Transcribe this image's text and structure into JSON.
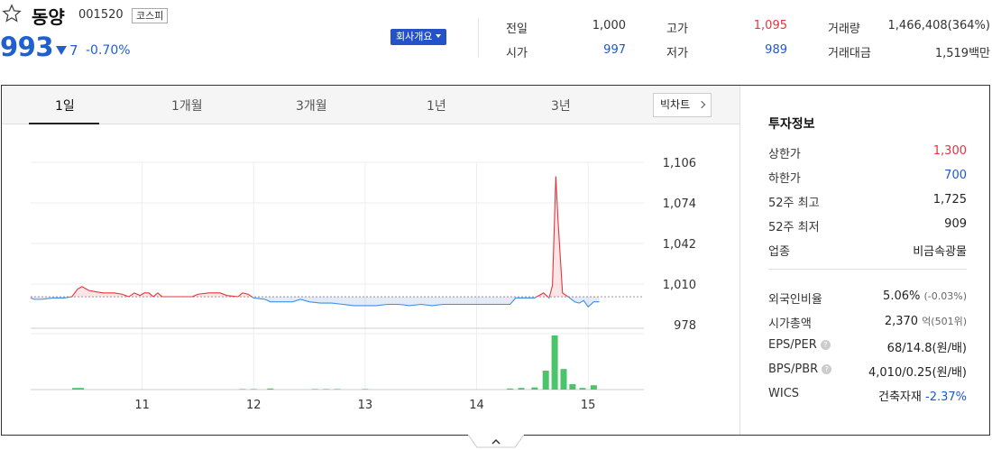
{
  "stock": {
    "name": "동양",
    "code": "001520",
    "market": "코스피",
    "price": "993",
    "change": "7",
    "change_pct": "-0.70%",
    "overview_button": "회사개요"
  },
  "quote": {
    "prev_close_label": "전일",
    "prev_close": "1,000",
    "open_label": "시가",
    "open": "997",
    "high_label": "고가",
    "high": "1,095",
    "low_label": "저가",
    "low": "989",
    "volume_label": "거래량",
    "volume": "1,466,408(364%)",
    "amount_label": "거래대금",
    "amount": "1,519백만"
  },
  "tabs": [
    "1일",
    "1개월",
    "3개월",
    "1년",
    "3년"
  ],
  "big_chart_label": "빅차트",
  "investment": {
    "title": "투자정보",
    "rows_top": [
      {
        "label": "상한가",
        "value": "1,300",
        "color": "red"
      },
      {
        "label": "하한가",
        "value": "700",
        "color": "blue"
      },
      {
        "label": "52주 최고",
        "value": "1,725",
        "color": ""
      },
      {
        "label": "52주 최저",
        "value": "909",
        "color": ""
      },
      {
        "label": "업종",
        "value": "비금속광물",
        "color": ""
      }
    ],
    "foreign_label": "외국인비율",
    "foreign_value": "5.06%",
    "foreign_sub": "(-0.03%)",
    "mcap_label": "시가총액",
    "mcap_value": "2,370",
    "mcap_unit": "억",
    "mcap_sub": "(501위)",
    "eps_label": "EPS/PER",
    "eps_value": "68/14.8",
    "eps_unit": "(원/배)",
    "bps_label": "BPS/PBR",
    "bps_value": "4,010/0.25",
    "bps_unit": "(원/배)",
    "wics_label": "WICS",
    "wics_value": "건축자재",
    "wics_pct": "-2.37%",
    "help_icon": "?"
  },
  "colors": {
    "up": "#e4353c",
    "down": "#2157c6",
    "volume": "#4ac56b",
    "accent": "#2552c9"
  },
  "chart_data": {
    "type": "line",
    "title": "",
    "xlabel": "",
    "ylabel": "",
    "x_ticks": [
      "11",
      "12",
      "13",
      "14",
      "15"
    ],
    "y_ticks": [
      "1,106",
      "1,074",
      "1,042",
      "1,010",
      "978"
    ],
    "ylim": [
      978,
      1106
    ],
    "baseline": 1000,
    "x_start_hour": 10.0,
    "x_end_hour": 15.5,
    "price_series": [
      {
        "h": 10.0,
        "v": 999
      },
      {
        "h": 10.03,
        "v": 998
      },
      {
        "h": 10.1,
        "v": 998
      },
      {
        "h": 10.2,
        "v": 999
      },
      {
        "h": 10.3,
        "v": 999
      },
      {
        "h": 10.37,
        "v": 1000
      },
      {
        "h": 10.42,
        "v": 1006
      },
      {
        "h": 10.46,
        "v": 1008
      },
      {
        "h": 10.52,
        "v": 1005
      },
      {
        "h": 10.58,
        "v": 1004
      },
      {
        "h": 10.65,
        "v": 1003
      },
      {
        "h": 10.75,
        "v": 1003
      },
      {
        "h": 10.82,
        "v": 1002
      },
      {
        "h": 10.88,
        "v": 1000
      },
      {
        "h": 10.93,
        "v": 1003
      },
      {
        "h": 10.98,
        "v": 1001
      },
      {
        "h": 11.02,
        "v": 1003
      },
      {
        "h": 11.06,
        "v": 1003
      },
      {
        "h": 11.1,
        "v": 1000
      },
      {
        "h": 11.14,
        "v": 1003
      },
      {
        "h": 11.18,
        "v": 1000
      },
      {
        "h": 11.3,
        "v": 1000
      },
      {
        "h": 11.45,
        "v": 1000
      },
      {
        "h": 11.5,
        "v": 1002
      },
      {
        "h": 11.6,
        "v": 1003
      },
      {
        "h": 11.7,
        "v": 1003
      },
      {
        "h": 11.76,
        "v": 1001
      },
      {
        "h": 11.86,
        "v": 1000
      },
      {
        "h": 11.9,
        "v": 1003
      },
      {
        "h": 11.95,
        "v": 1002
      },
      {
        "h": 12.0,
        "v": 999
      },
      {
        "h": 12.1,
        "v": 998
      },
      {
        "h": 12.15,
        "v": 996
      },
      {
        "h": 12.25,
        "v": 996
      },
      {
        "h": 12.35,
        "v": 996
      },
      {
        "h": 12.42,
        "v": 998
      },
      {
        "h": 12.5,
        "v": 996
      },
      {
        "h": 12.6,
        "v": 995
      },
      {
        "h": 12.7,
        "v": 995
      },
      {
        "h": 12.8,
        "v": 994
      },
      {
        "h": 12.9,
        "v": 993
      },
      {
        "h": 13.0,
        "v": 993
      },
      {
        "h": 13.1,
        "v": 993
      },
      {
        "h": 13.2,
        "v": 994
      },
      {
        "h": 13.3,
        "v": 994
      },
      {
        "h": 13.4,
        "v": 993
      },
      {
        "h": 13.5,
        "v": 994
      },
      {
        "h": 13.6,
        "v": 993
      },
      {
        "h": 13.7,
        "v": 994
      },
      {
        "h": 13.8,
        "v": 994
      },
      {
        "h": 13.9,
        "v": 994
      },
      {
        "h": 14.0,
        "v": 994
      },
      {
        "h": 14.1,
        "v": 994
      },
      {
        "h": 14.2,
        "v": 994
      },
      {
        "h": 14.3,
        "v": 994
      },
      {
        "h": 14.35,
        "v": 999
      },
      {
        "h": 14.45,
        "v": 999
      },
      {
        "h": 14.52,
        "v": 999
      },
      {
        "h": 14.6,
        "v": 1003
      },
      {
        "h": 14.65,
        "v": 999
      },
      {
        "h": 14.68,
        "v": 1009
      },
      {
        "h": 14.71,
        "v": 1095
      },
      {
        "h": 14.73,
        "v": 1060
      },
      {
        "h": 14.77,
        "v": 1003
      },
      {
        "h": 14.82,
        "v": 1000
      },
      {
        "h": 14.88,
        "v": 996
      },
      {
        "h": 14.92,
        "v": 995
      },
      {
        "h": 14.96,
        "v": 997
      },
      {
        "h": 15.0,
        "v": 992
      },
      {
        "h": 15.05,
        "v": 996
      },
      {
        "h": 15.1,
        "v": 996
      }
    ],
    "volume_series": [
      {
        "h": 10.4,
        "v": 3
      },
      {
        "h": 10.45,
        "v": 3
      },
      {
        "h": 11.9,
        "v": 1
      },
      {
        "h": 12.0,
        "v": 1
      },
      {
        "h": 12.15,
        "v": 2
      },
      {
        "h": 12.55,
        "v": 1
      },
      {
        "h": 12.65,
        "v": 1
      },
      {
        "h": 12.75,
        "v": 1
      },
      {
        "h": 13.0,
        "v": 1
      },
      {
        "h": 14.3,
        "v": 2
      },
      {
        "h": 14.4,
        "v": 3
      },
      {
        "h": 14.52,
        "v": 4
      },
      {
        "h": 14.62,
        "v": 35
      },
      {
        "h": 14.7,
        "v": 100
      },
      {
        "h": 14.78,
        "v": 38
      },
      {
        "h": 14.86,
        "v": 10
      },
      {
        "h": 14.95,
        "v": 3
      },
      {
        "h": 15.05,
        "v": 8
      }
    ]
  }
}
